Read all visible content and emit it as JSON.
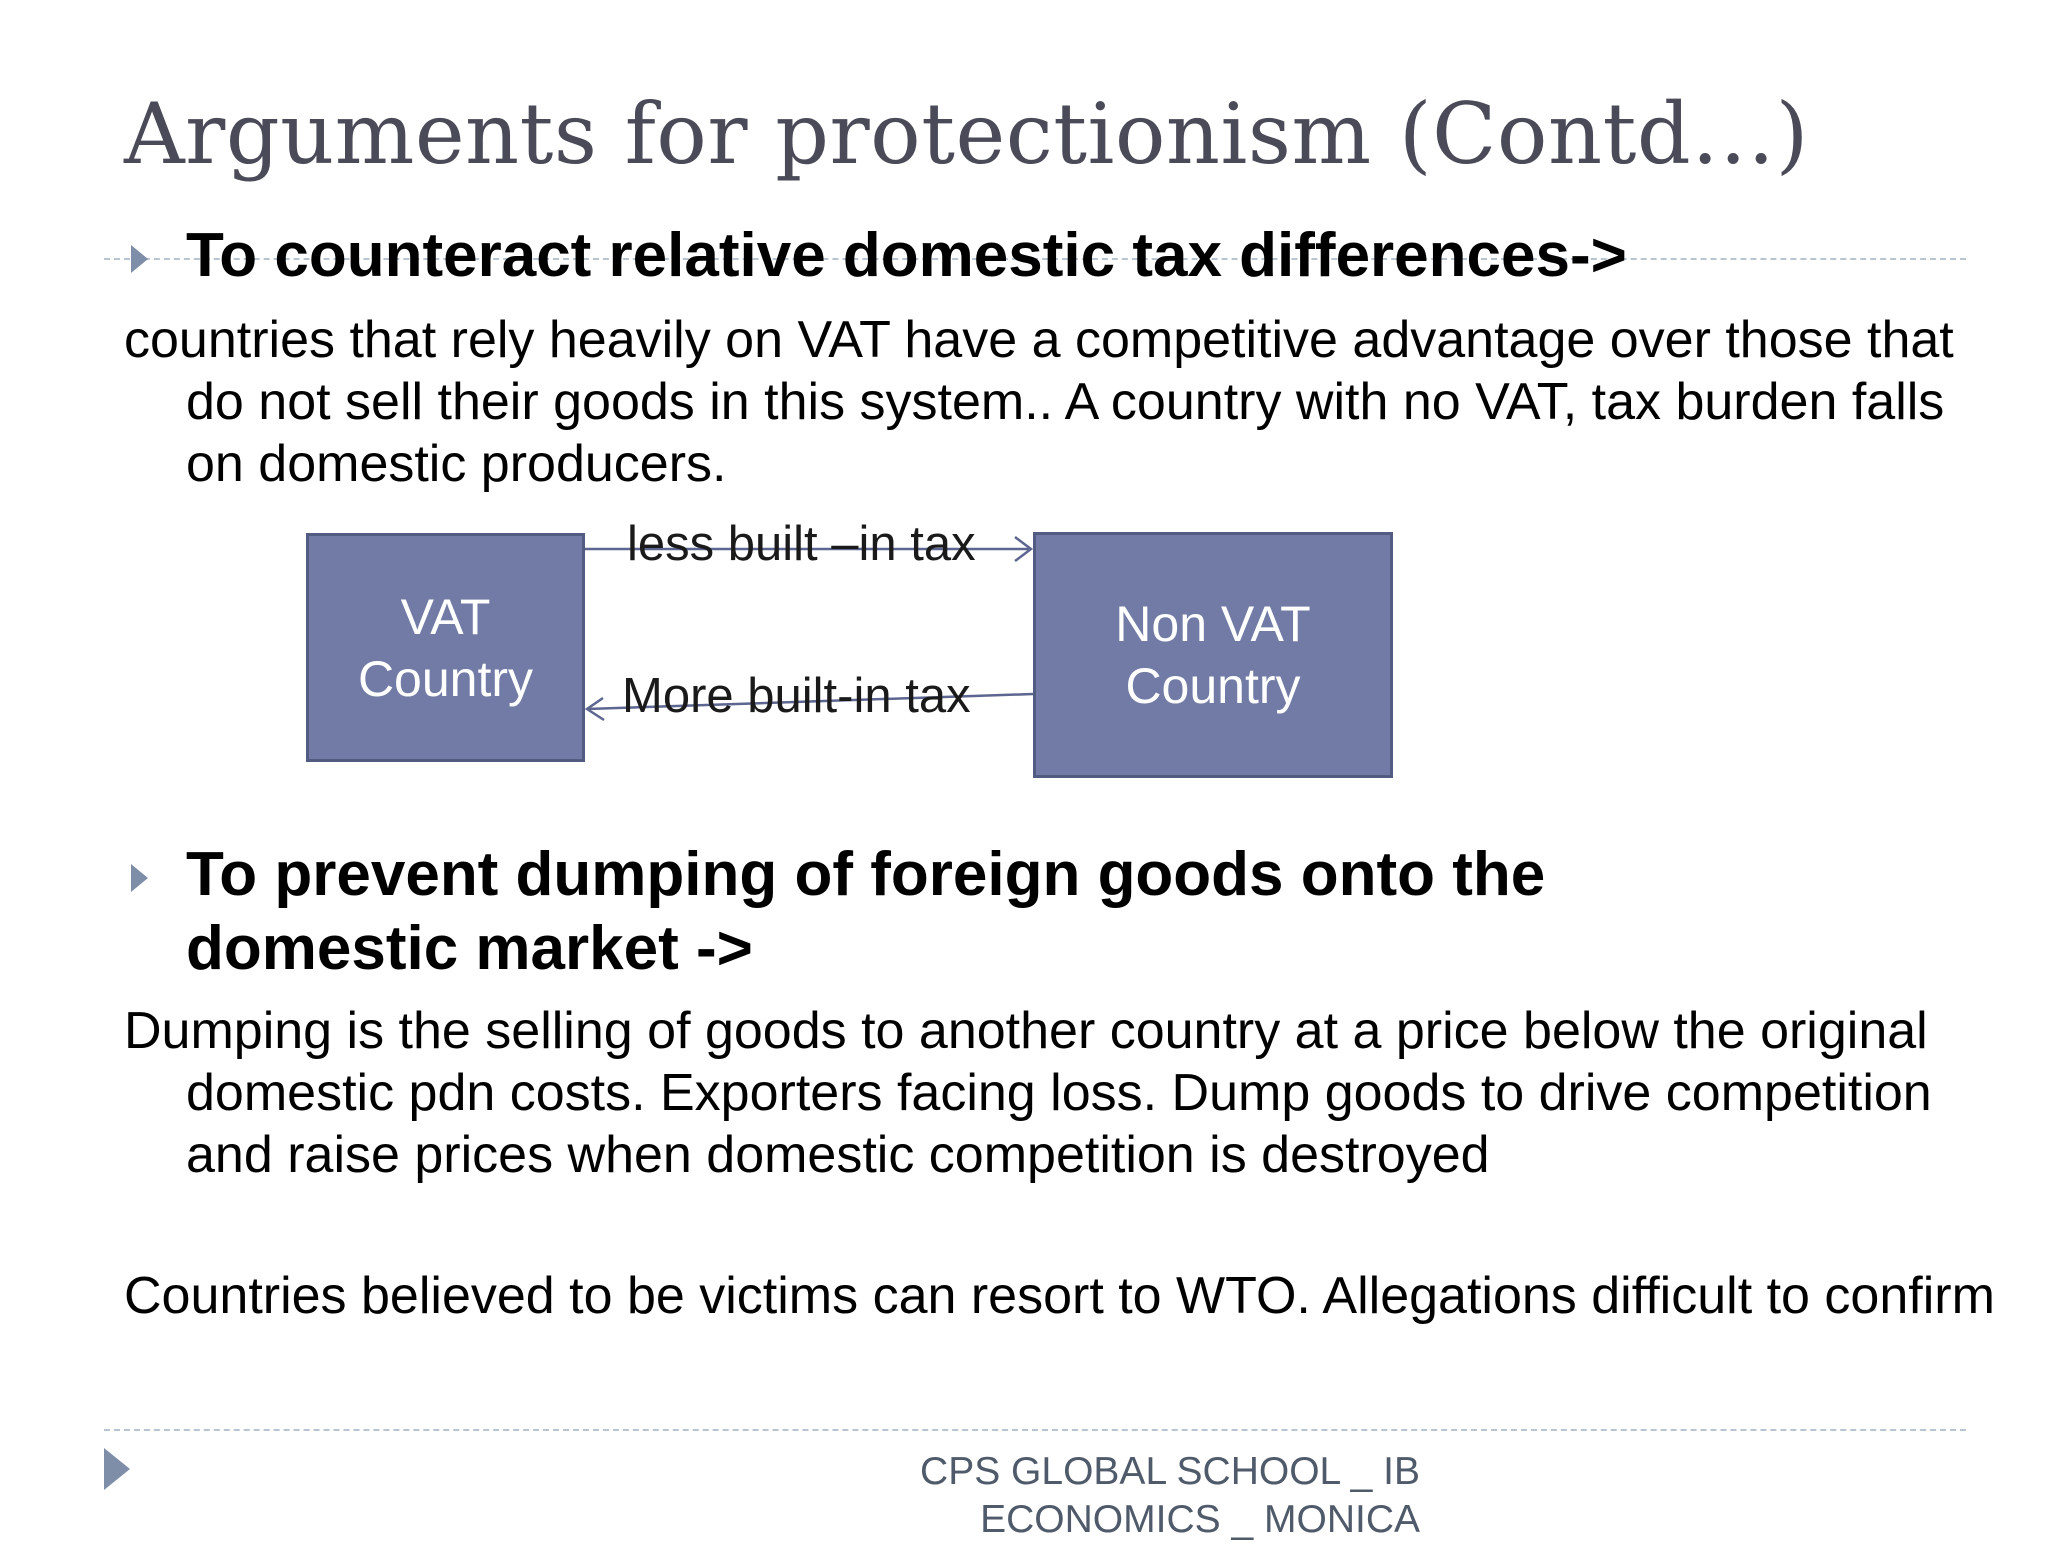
{
  "slide": {
    "title": "Arguments for protectionism (Contd…)"
  },
  "section1": {
    "heading": "To counteract relative domestic tax differences->",
    "paragraph": "countries that rely heavily on VAT have a competitive advantage over those that do not sell their goods in this system.. A country with no VAT, tax burden falls on domestic producers."
  },
  "diagram": {
    "left_box": {
      "line1": "VAT",
      "line2": "Country"
    },
    "right_box": {
      "line1": "Non VAT",
      "line2": "Country"
    },
    "top_arrow_label": "less built –in tax",
    "bottom_arrow_label": "More built-in tax",
    "box_color": "#717ba5"
  },
  "section2": {
    "heading_line1": "To prevent dumping of foreign goods onto the",
    "heading_line2": "domestic market ->",
    "paragraph1": "Dumping is the selling of goods to another country at a price below the original domestic pdn costs. Exporters facing loss. Dump goods to drive competition and raise prices when domestic competition is destroyed",
    "paragraph2": "Countries believed to be victims can resort to WTO. Allegations difficult to confirm"
  },
  "footer": {
    "line1": "CPS GLOBAL SCHOOL _ IB",
    "line2": "ECONOMICS _ MONICA"
  },
  "theme": {
    "accent": "#7e8ea8",
    "title_color": "#4a4a58"
  }
}
